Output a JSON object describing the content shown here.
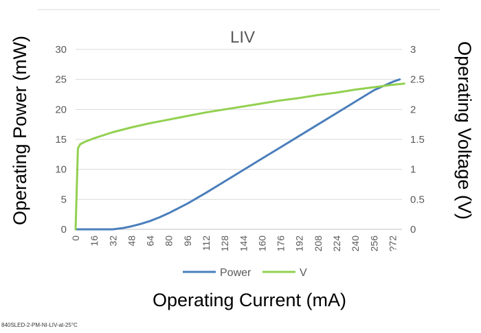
{
  "chart_data": {
    "type": "line",
    "title": "LIV",
    "xlabel": "Operating Current (mA)",
    "ylabel": "Operating Power (mW)",
    "y2label": "Operating Voltage (V)",
    "ylim": [
      0,
      30
    ],
    "y2lim": [
      0,
      3
    ],
    "xlim": [
      0,
      280
    ],
    "yticks": [
      "0",
      "5",
      "10",
      "15",
      "20",
      "25",
      "30"
    ],
    "y2ticks": [
      "0",
      "0.5",
      "1",
      "1.5",
      "2",
      "2.5",
      "3"
    ],
    "xticks": [
      "0",
      "16",
      "32",
      "48",
      "64",
      "80",
      "96",
      "112",
      "128",
      "144",
      "160",
      "176",
      "192",
      "208",
      "224",
      "240",
      "256",
      "?72"
    ],
    "grid": true,
    "legend": "bottom",
    "series": [
      {
        "name": "Power",
        "axis": "left",
        "color": "#4a7ebb",
        "x": [
          0,
          16,
          32,
          40,
          48,
          56,
          64,
          72,
          80,
          88,
          96,
          104,
          112,
          128,
          144,
          160,
          176,
          192,
          208,
          224,
          240,
          256,
          272,
          278
        ],
        "y": [
          0,
          0,
          0,
          0.2,
          0.5,
          0.9,
          1.4,
          2.0,
          2.7,
          3.5,
          4.3,
          5.2,
          6.1,
          8.0,
          9.9,
          11.8,
          13.7,
          15.6,
          17.5,
          19.4,
          21.3,
          23.2,
          24.6,
          25.0
        ]
      },
      {
        "name": "V",
        "axis": "right",
        "color": "#92d050",
        "x": [
          0,
          2,
          4,
          8,
          16,
          32,
          48,
          64,
          80,
          96,
          112,
          128,
          144,
          160,
          176,
          192,
          208,
          224,
          240,
          256,
          272,
          282
        ],
        "y": [
          0,
          1.35,
          1.42,
          1.46,
          1.52,
          1.62,
          1.7,
          1.77,
          1.83,
          1.89,
          1.95,
          2.0,
          2.05,
          2.1,
          2.15,
          2.19,
          2.24,
          2.28,
          2.33,
          2.37,
          2.41,
          2.43
        ]
      }
    ]
  },
  "caption": "840SLED-2-PM-NI-LIV-at-25°C"
}
